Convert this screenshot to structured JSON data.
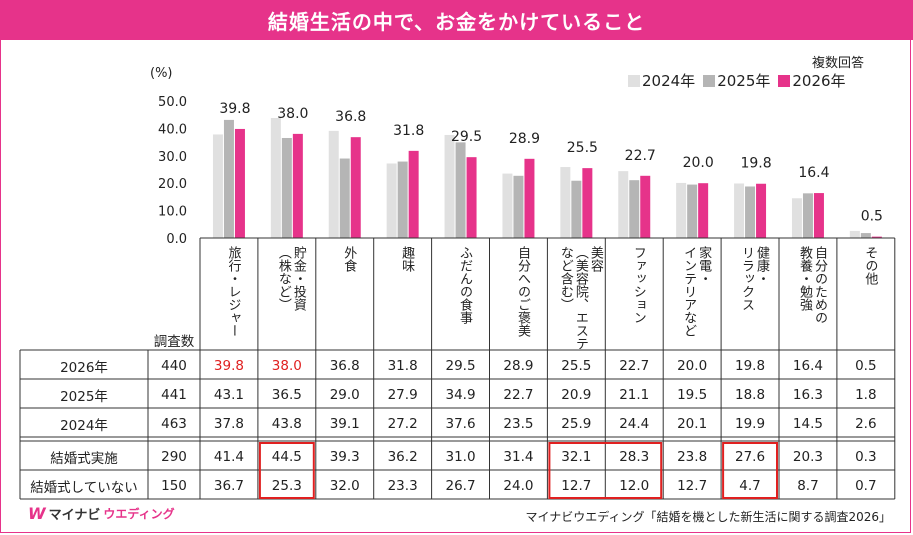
{
  "title": "結婚生活の中で、お金をかけていること",
  "unit_label": "(%)",
  "note": "複数回答",
  "legend": [
    {
      "label": "2024年",
      "color": "#e0e0e0"
    },
    {
      "label": "2025年",
      "color": "#b5b5b5"
    },
    {
      "label": "2026年",
      "color": "#e6338a"
    }
  ],
  "chart_data": {
    "type": "bar",
    "categories": [
      "旅行・レジャー",
      "貯金・投資（株など）",
      "外食",
      "趣味",
      "ふだんの食事",
      "自分へのご褒美",
      "美容（美容院、エステなど含む）",
      "ファッション",
      "家電・インテリアなど",
      "健康・リラックス",
      "自分のための教養・勉強",
      "その他"
    ],
    "category_labels": [
      "旅行・レジャー",
      "貯金・投資\n（株など）",
      "外食",
      "趣味",
      "ふだんの食事",
      "自分へのご褒美",
      "美容\n（美容院、エステ\nなど含む）",
      "ファッション",
      "家電・\nインテリアなど",
      "健康・\nリラックス",
      "自分のための\n教養・勉強",
      "その他"
    ],
    "series": [
      {
        "name": "2024年",
        "values": [
          37.8,
          43.8,
          39.1,
          27.2,
          37.6,
          23.5,
          25.9,
          24.4,
          20.1,
          19.9,
          14.5,
          2.6
        ]
      },
      {
        "name": "2025年",
        "values": [
          43.1,
          36.5,
          29.0,
          27.9,
          34.9,
          22.7,
          20.9,
          21.1,
          19.5,
          18.8,
          16.3,
          1.8
        ]
      },
      {
        "name": "2026年",
        "values": [
          39.8,
          38.0,
          36.8,
          31.8,
          29.5,
          28.9,
          25.5,
          22.7,
          20.0,
          19.8,
          16.4,
          0.5
        ]
      }
    ],
    "data_labels": [
      "39.8",
      "38.0",
      "36.8",
      "31.8",
      "29.5",
      "28.9",
      "25.5",
      "22.7",
      "20.0",
      "19.8",
      "16.4",
      "0.5"
    ],
    "yticks": [
      "50.0",
      "40.0",
      "30.0",
      "20.0",
      "10.0",
      "0.0"
    ],
    "ylim": [
      0,
      50
    ],
    "legend_position": "top-right"
  },
  "table": {
    "count_header": "調査数",
    "rows": [
      {
        "label": "2026年",
        "n": "440",
        "values": [
          "39.8",
          "38.0",
          "36.8",
          "31.8",
          "29.5",
          "28.9",
          "25.5",
          "22.7",
          "20.0",
          "19.8",
          "16.4",
          "0.5"
        ],
        "red_text": [
          0,
          1
        ]
      },
      {
        "label": "2025年",
        "n": "441",
        "values": [
          "43.1",
          "36.5",
          "29.0",
          "27.9",
          "34.9",
          "22.7",
          "20.9",
          "21.1",
          "19.5",
          "18.8",
          "16.3",
          "1.8"
        ],
        "red_text": []
      },
      {
        "label": "2024年",
        "n": "463",
        "values": [
          "37.8",
          "43.8",
          "39.1",
          "27.2",
          "37.6",
          "23.5",
          "25.9",
          "24.4",
          "20.1",
          "19.9",
          "14.5",
          "2.6"
        ],
        "red_text": []
      },
      {
        "label": "結婚式実施",
        "n": "290",
        "values": [
          "41.4",
          "44.5",
          "39.3",
          "36.2",
          "31.0",
          "31.4",
          "32.1",
          "28.3",
          "23.8",
          "27.6",
          "20.3",
          "0.3"
        ],
        "red_text": []
      },
      {
        "label": "結婚式していない",
        "n": "150",
        "values": [
          "36.7",
          "25.3",
          "32.0",
          "23.3",
          "26.7",
          "24.0",
          "12.7",
          "12.0",
          "12.7",
          "4.7",
          "8.7",
          "0.7"
        ],
        "red_text": []
      }
    ],
    "highlight_columns": [
      1,
      6,
      7,
      9
    ],
    "highlight_color": "#e02020"
  },
  "footer": {
    "logo_mark": "W",
    "logo_text": "マイナビ",
    "logo_sub": "ウエディング",
    "source": "マイナビウエディング「結婚を機とした新生活に関する調査2026」"
  }
}
